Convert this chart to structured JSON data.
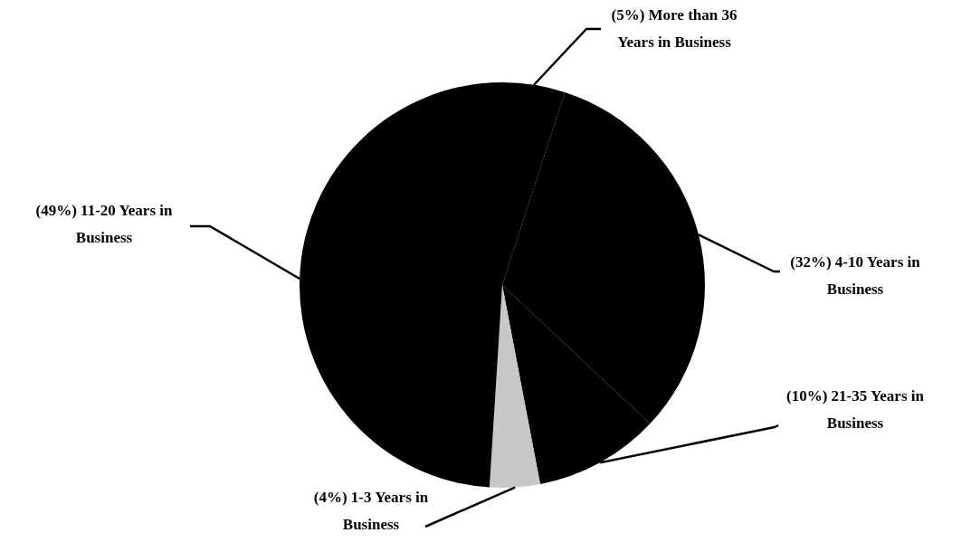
{
  "chart_data": {
    "type": "pie",
    "categories": [
      "(5%) More than 36 Years in Business",
      "(32%) 4-10 Years in Business",
      "(10%) 21-35 Years in Business",
      "(4%) 1-3 Years in Business",
      "(49%) 11-20 Years in Business"
    ],
    "values": [
      5,
      32,
      10,
      4,
      49
    ],
    "colors": [
      "#000000",
      "#000000",
      "#000000",
      "#c8c8c8",
      "#000000"
    ],
    "legend": false
  }
}
